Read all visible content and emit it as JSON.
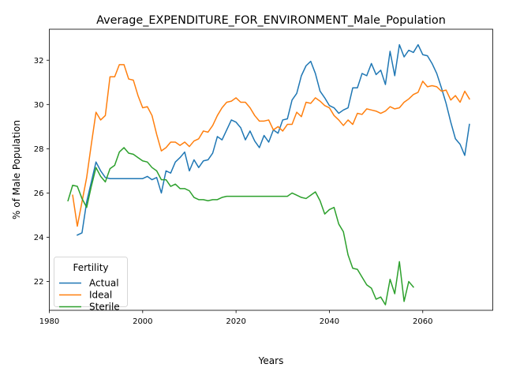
{
  "chart_data": {
    "type": "line",
    "title": "Average_EXPENDITURE_FOR_ENVIRONMENT_Male_Population",
    "xlabel": "Years",
    "ylabel": "% of Male Population",
    "xlim": [
      1980,
      2075
    ],
    "ylim": [
      20.7,
      33.4
    ],
    "xticks": [
      1980,
      2000,
      2020,
      2040,
      2060
    ],
    "yticks": [
      22,
      24,
      26,
      28,
      30,
      32
    ],
    "grid": false,
    "legend": {
      "title": "Fertility",
      "placement": "lower-left"
    },
    "series": [
      {
        "name": "Actual",
        "color": "#1f77b4",
        "x": [
          1986,
          1987,
          1988,
          1989,
          1990,
          1991,
          1992,
          1993,
          1994,
          1995,
          1996,
          1997,
          1998,
          1999,
          2000,
          2001,
          2002,
          2003,
          2004,
          2005,
          2006,
          2007,
          2008,
          2009,
          2010,
          2011,
          2012,
          2013,
          2014,
          2015,
          2016,
          2017,
          2018,
          2019,
          2020,
          2021,
          2022,
          2023,
          2024,
          2025,
          2026,
          2027,
          2028,
          2029,
          2030,
          2031,
          2032,
          2033,
          2034,
          2035,
          2036,
          2037,
          2038,
          2039,
          2040,
          2041,
          2042,
          2043,
          2044,
          2045,
          2046,
          2047,
          2048,
          2049,
          2050,
          2051,
          2052,
          2053,
          2054,
          2055,
          2056,
          2057,
          2058,
          2059,
          2060,
          2061,
          2062,
          2063,
          2064,
          2065,
          2066,
          2067,
          2068,
          2069,
          2070
        ],
        "values": [
          24.1,
          24.2,
          25.6,
          26.5,
          27.4,
          27.0,
          26.7,
          26.65,
          26.65,
          26.65,
          26.65,
          26.65,
          26.65,
          26.65,
          26.65,
          26.75,
          26.6,
          26.7,
          26.0,
          27.0,
          26.9,
          27.4,
          27.6,
          27.85,
          27.0,
          27.5,
          27.15,
          27.45,
          27.5,
          27.8,
          28.55,
          28.4,
          28.85,
          29.3,
          29.2,
          28.95,
          28.4,
          28.8,
          28.35,
          28.05,
          28.6,
          28.3,
          28.85,
          28.7,
          29.3,
          29.35,
          30.2,
          30.5,
          31.3,
          31.75,
          31.95,
          31.4,
          30.6,
          30.3,
          29.95,
          29.85,
          29.6,
          29.75,
          29.85,
          30.75,
          30.75,
          31.4,
          31.3,
          31.85,
          31.35,
          31.55,
          30.9,
          32.4,
          31.3,
          32.7,
          32.15,
          32.45,
          32.35,
          32.7,
          32.25,
          32.2,
          31.85,
          31.4,
          30.75,
          30.05,
          29.2,
          28.45,
          28.2,
          27.7,
          29.1
        ]
      },
      {
        "name": "Ideal",
        "color": "#ff7f0e",
        "x": [
          1985,
          1986,
          1987,
          1988,
          1989,
          1990,
          1991,
          1992,
          1993,
          1994,
          1995,
          1996,
          1997,
          1998,
          1999,
          2000,
          2001,
          2002,
          2003,
          2004,
          2005,
          2006,
          2007,
          2008,
          2009,
          2010,
          2011,
          2012,
          2013,
          2014,
          2015,
          2016,
          2017,
          2018,
          2019,
          2020,
          2021,
          2022,
          2023,
          2024,
          2025,
          2026,
          2027,
          2028,
          2029,
          2030,
          2031,
          2032,
          2033,
          2034,
          2035,
          2036,
          2037,
          2038,
          2039,
          2040,
          2041,
          2042,
          2043,
          2044,
          2045,
          2046,
          2047,
          2048,
          2049,
          2050,
          2051,
          2052,
          2053,
          2054,
          2055,
          2056,
          2057,
          2058,
          2059,
          2060,
          2061,
          2062,
          2063,
          2064,
          2065,
          2066,
          2067,
          2068,
          2069,
          2070
        ],
        "values": [
          25.9,
          24.5,
          25.6,
          26.7,
          28.2,
          29.65,
          29.3,
          29.5,
          31.25,
          31.25,
          31.8,
          31.8,
          31.15,
          31.1,
          30.4,
          29.85,
          29.9,
          29.5,
          28.65,
          27.9,
          28.05,
          28.3,
          28.3,
          28.15,
          28.3,
          28.1,
          28.35,
          28.45,
          28.8,
          28.75,
          29.05,
          29.5,
          29.85,
          30.1,
          30.15,
          30.3,
          30.1,
          30.1,
          29.85,
          29.5,
          29.25,
          29.25,
          29.3,
          28.85,
          29.0,
          28.8,
          29.1,
          29.1,
          29.65,
          29.45,
          30.1,
          30.05,
          30.3,
          30.15,
          29.95,
          29.85,
          29.5,
          29.3,
          29.05,
          29.3,
          29.1,
          29.6,
          29.55,
          29.8,
          29.75,
          29.7,
          29.6,
          29.7,
          29.9,
          29.8,
          29.85,
          30.1,
          30.25,
          30.45,
          30.55,
          31.05,
          30.8,
          30.85,
          30.8,
          30.6,
          30.65,
          30.2,
          30.4,
          30.1,
          30.6,
          30.25
        ]
      },
      {
        "name": "Sterile",
        "color": "#2ca02c",
        "x": [
          1984,
          1985,
          1986,
          1987,
          1988,
          1989,
          1990,
          1991,
          1992,
          1993,
          1994,
          1995,
          1996,
          1997,
          1998,
          1999,
          2000,
          2001,
          2002,
          2003,
          2004,
          2005,
          2006,
          2007,
          2008,
          2009,
          2010,
          2011,
          2012,
          2013,
          2014,
          2015,
          2016,
          2017,
          2018,
          2019,
          2020,
          2021,
          2022,
          2023,
          2024,
          2025,
          2026,
          2027,
          2028,
          2029,
          2030,
          2031,
          2032,
          2033,
          2034,
          2035,
          2036,
          2037,
          2038,
          2039,
          2040,
          2041,
          2042,
          2043,
          2044,
          2045,
          2046,
          2047,
          2048,
          2049,
          2050,
          2051,
          2052,
          2053,
          2054,
          2055,
          2056,
          2057,
          2058
        ],
        "values": [
          25.65,
          26.35,
          26.3,
          25.75,
          25.35,
          26.3,
          27.15,
          26.75,
          26.5,
          27.1,
          27.25,
          27.85,
          28.05,
          27.8,
          27.75,
          27.6,
          27.45,
          27.4,
          27.15,
          27.0,
          26.6,
          26.6,
          26.3,
          26.4,
          26.2,
          26.2,
          26.1,
          25.8,
          25.7,
          25.7,
          25.65,
          25.7,
          25.7,
          25.8,
          25.85,
          25.85,
          25.85,
          25.85,
          25.85,
          25.85,
          25.85,
          25.85,
          25.85,
          25.85,
          25.85,
          25.85,
          25.85,
          25.85,
          26.0,
          25.9,
          25.8,
          25.75,
          25.9,
          26.05,
          25.65,
          25.05,
          25.25,
          25.35,
          24.6,
          24.25,
          23.2,
          22.6,
          22.55,
          22.2,
          21.85,
          21.7,
          21.2,
          21.3,
          20.95,
          22.1,
          21.45,
          22.9,
          21.1,
          22.0,
          21.75
        ]
      }
    ]
  }
}
